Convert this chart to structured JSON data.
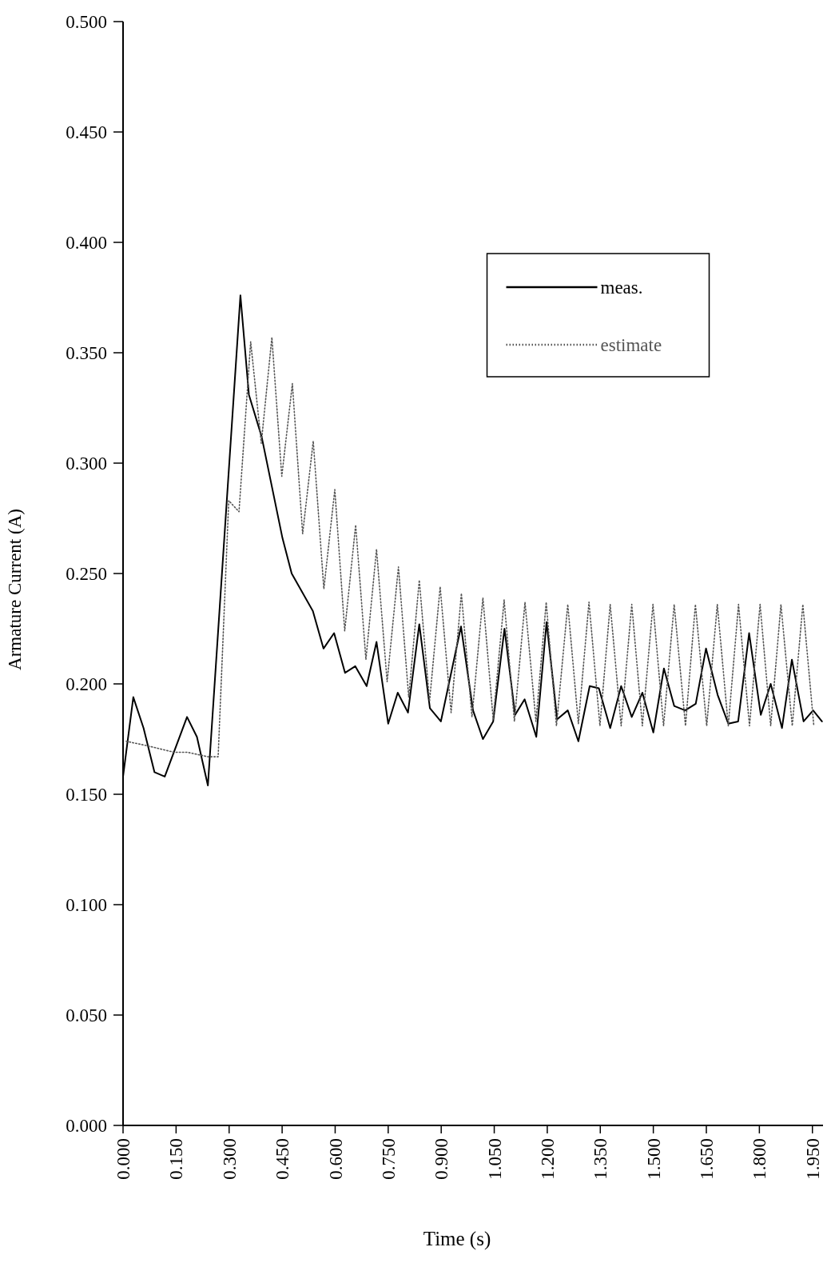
{
  "chart_data": {
    "type": "line",
    "xlabel": "Time (s)",
    "ylabel": "Armature Current (A)",
    "xlim": [
      0,
      1.98
    ],
    "ylim": [
      0,
      0.5
    ],
    "xticks": [
      {
        "value": 0,
        "label": "0.000"
      },
      {
        "value": 0.15,
        "label": "0.150"
      },
      {
        "value": 0.3,
        "label": "0.300"
      },
      {
        "value": 0.45,
        "label": "0.450"
      },
      {
        "value": 0.6,
        "label": "0.600"
      },
      {
        "value": 0.75,
        "label": "0.750"
      },
      {
        "value": 0.9,
        "label": "0.900"
      },
      {
        "value": 1.05,
        "label": "1.050"
      },
      {
        "value": 1.2,
        "label": "1.200"
      },
      {
        "value": 1.35,
        "label": "1.350"
      },
      {
        "value": 1.5,
        "label": "1.500"
      },
      {
        "value": 1.65,
        "label": "1.650"
      },
      {
        "value": 1.8,
        "label": "1.800"
      },
      {
        "value": 1.95,
        "label": "1.950"
      }
    ],
    "yticks": [
      {
        "value": 0,
        "label": "0.000"
      },
      {
        "value": 0.05,
        "label": "0.050"
      },
      {
        "value": 0.1,
        "label": "0.100"
      },
      {
        "value": 0.15,
        "label": "0.150"
      },
      {
        "value": 0.2,
        "label": "0.200"
      },
      {
        "value": 0.25,
        "label": "0.250"
      },
      {
        "value": 0.3,
        "label": "0.300"
      },
      {
        "value": 0.35,
        "label": "0.350"
      },
      {
        "value": 0.4,
        "label": "0.400"
      },
      {
        "value": 0.45,
        "label": "0.450"
      },
      {
        "value": 0.5,
        "label": "0.500"
      }
    ],
    "grid": false,
    "legend": "top right",
    "marker": "none",
    "series": [
      {
        "name": "meas.",
        "color": "#000000",
        "line_style": "solid",
        "x": [
          0,
          0.029,
          0.058,
          0.089,
          0.118,
          0.181,
          0.209,
          0.24,
          0.332,
          0.356,
          0.392,
          0.451,
          0.477,
          0.537,
          0.567,
          0.597,
          0.628,
          0.657,
          0.689,
          0.717,
          0.75,
          0.777,
          0.806,
          0.838,
          0.868,
          0.899,
          0.956,
          0.99,
          1.018,
          1.047,
          1.079,
          1.109,
          1.136,
          1.169,
          1.198,
          1.228,
          1.258,
          1.288,
          1.32,
          1.346,
          1.378,
          1.409,
          1.439,
          1.469,
          1.5,
          1.53,
          1.559,
          1.59,
          1.62,
          1.649,
          1.682,
          1.712,
          1.74,
          1.771,
          1.804,
          1.832,
          1.864,
          1.892,
          1.925,
          1.952,
          1.977
        ],
        "values": [
          0.158,
          0.194,
          0.18,
          0.16,
          0.158,
          0.185,
          0.176,
          0.154,
          0.376,
          0.331,
          0.312,
          0.266,
          0.25,
          0.233,
          0.216,
          0.223,
          0.205,
          0.208,
          0.199,
          0.219,
          0.182,
          0.196,
          0.187,
          0.227,
          0.189,
          0.183,
          0.226,
          0.188,
          0.175,
          0.183,
          0.225,
          0.186,
          0.193,
          0.176,
          0.228,
          0.184,
          0.188,
          0.174,
          0.199,
          0.198,
          0.18,
          0.199,
          0.185,
          0.196,
          0.178,
          0.207,
          0.19,
          0.188,
          0.191,
          0.216,
          0.195,
          0.182,
          0.183,
          0.223,
          0.186,
          0.2,
          0.18,
          0.211,
          0.183,
          0.188,
          0.183
        ]
      },
      {
        "name": "estimate",
        "color": "#555555",
        "line_style": "dotted",
        "x": [
          0.009,
          0.068,
          0.145,
          0.183,
          0.24,
          0.269,
          0.299,
          0.328,
          0.361,
          0.391,
          0.421,
          0.449,
          0.479,
          0.508,
          0.538,
          0.568,
          0.599,
          0.627,
          0.658,
          0.687,
          0.717,
          0.747,
          0.779,
          0.808,
          0.838,
          0.867,
          0.897,
          0.928,
          0.957,
          0.987,
          1.018,
          1.047,
          1.078,
          1.107,
          1.137,
          1.168,
          1.197,
          1.226,
          1.258,
          1.288,
          1.318,
          1.349,
          1.378,
          1.409,
          1.439,
          1.469,
          1.499,
          1.529,
          1.559,
          1.591,
          1.619,
          1.651,
          1.681,
          1.712,
          1.741,
          1.772,
          1.802,
          1.832,
          1.861,
          1.893,
          1.923,
          1.954
        ],
        "values": [
          0.174,
          0.172,
          0.169,
          0.169,
          0.167,
          0.167,
          0.283,
          0.278,
          0.355,
          0.309,
          0.357,
          0.294,
          0.336,
          0.268,
          0.31,
          0.243,
          0.288,
          0.224,
          0.272,
          0.211,
          0.261,
          0.201,
          0.253,
          0.194,
          0.247,
          0.192,
          0.244,
          0.187,
          0.241,
          0.185,
          0.239,
          0.184,
          0.238,
          0.183,
          0.237,
          0.183,
          0.237,
          0.181,
          0.236,
          0.182,
          0.237,
          0.181,
          0.236,
          0.181,
          0.236,
          0.181,
          0.236,
          0.181,
          0.236,
          0.181,
          0.236,
          0.181,
          0.236,
          0.181,
          0.236,
          0.181,
          0.236,
          0.181,
          0.236,
          0.181,
          0.236,
          0.181
        ]
      }
    ]
  }
}
